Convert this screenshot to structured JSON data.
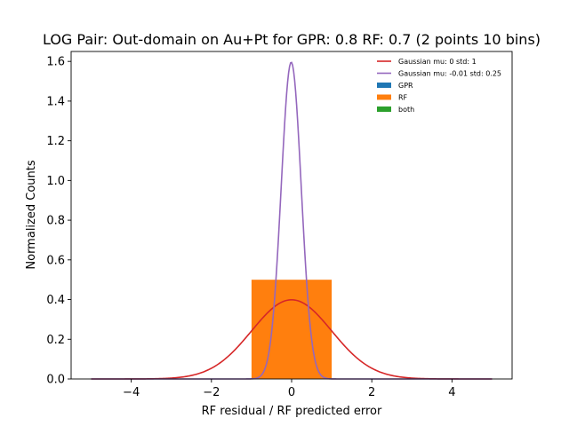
{
  "chart_data": {
    "type": "histogram",
    "title": "LOG Pair: Out-domain on Au+Pt for GPR: 0.8 RF: 0.7 (2 points 10 bins)",
    "xlabel": "RF residual / RF predicted error",
    "ylabel": "Normalized Counts",
    "xlim": [
      -5.5,
      5.5
    ],
    "ylim": [
      0,
      1.65
    ],
    "xticks": [
      -4,
      -2,
      0,
      2,
      4
    ],
    "yticks": [
      0.0,
      0.2,
      0.4,
      0.6,
      0.8,
      1.0,
      1.2,
      1.4,
      1.6
    ],
    "legend_position": "top-right",
    "grid": false,
    "bars": [
      {
        "series": "RF",
        "x_start": -1.0,
        "x_end": 1.0,
        "value": 0.5
      }
    ],
    "series": [
      {
        "name": "Gaussian mu: 0 std: 1",
        "kind": "line",
        "mu": 0,
        "std": 1,
        "x_range": [
          -5,
          5
        ],
        "color": "#d62728"
      },
      {
        "name": "Gaussian mu: -0.01 std: 0.25",
        "kind": "line",
        "mu": -0.01,
        "std": 0.25,
        "x_range": [
          -5,
          5
        ],
        "color": "#9467bd"
      },
      {
        "name": "GPR",
        "kind": "bar",
        "color": "#1f77b4"
      },
      {
        "name": "RF",
        "kind": "bar",
        "color": "#ff7f0e"
      },
      {
        "name": "both",
        "kind": "bar",
        "color": "#2ca02c"
      }
    ]
  }
}
